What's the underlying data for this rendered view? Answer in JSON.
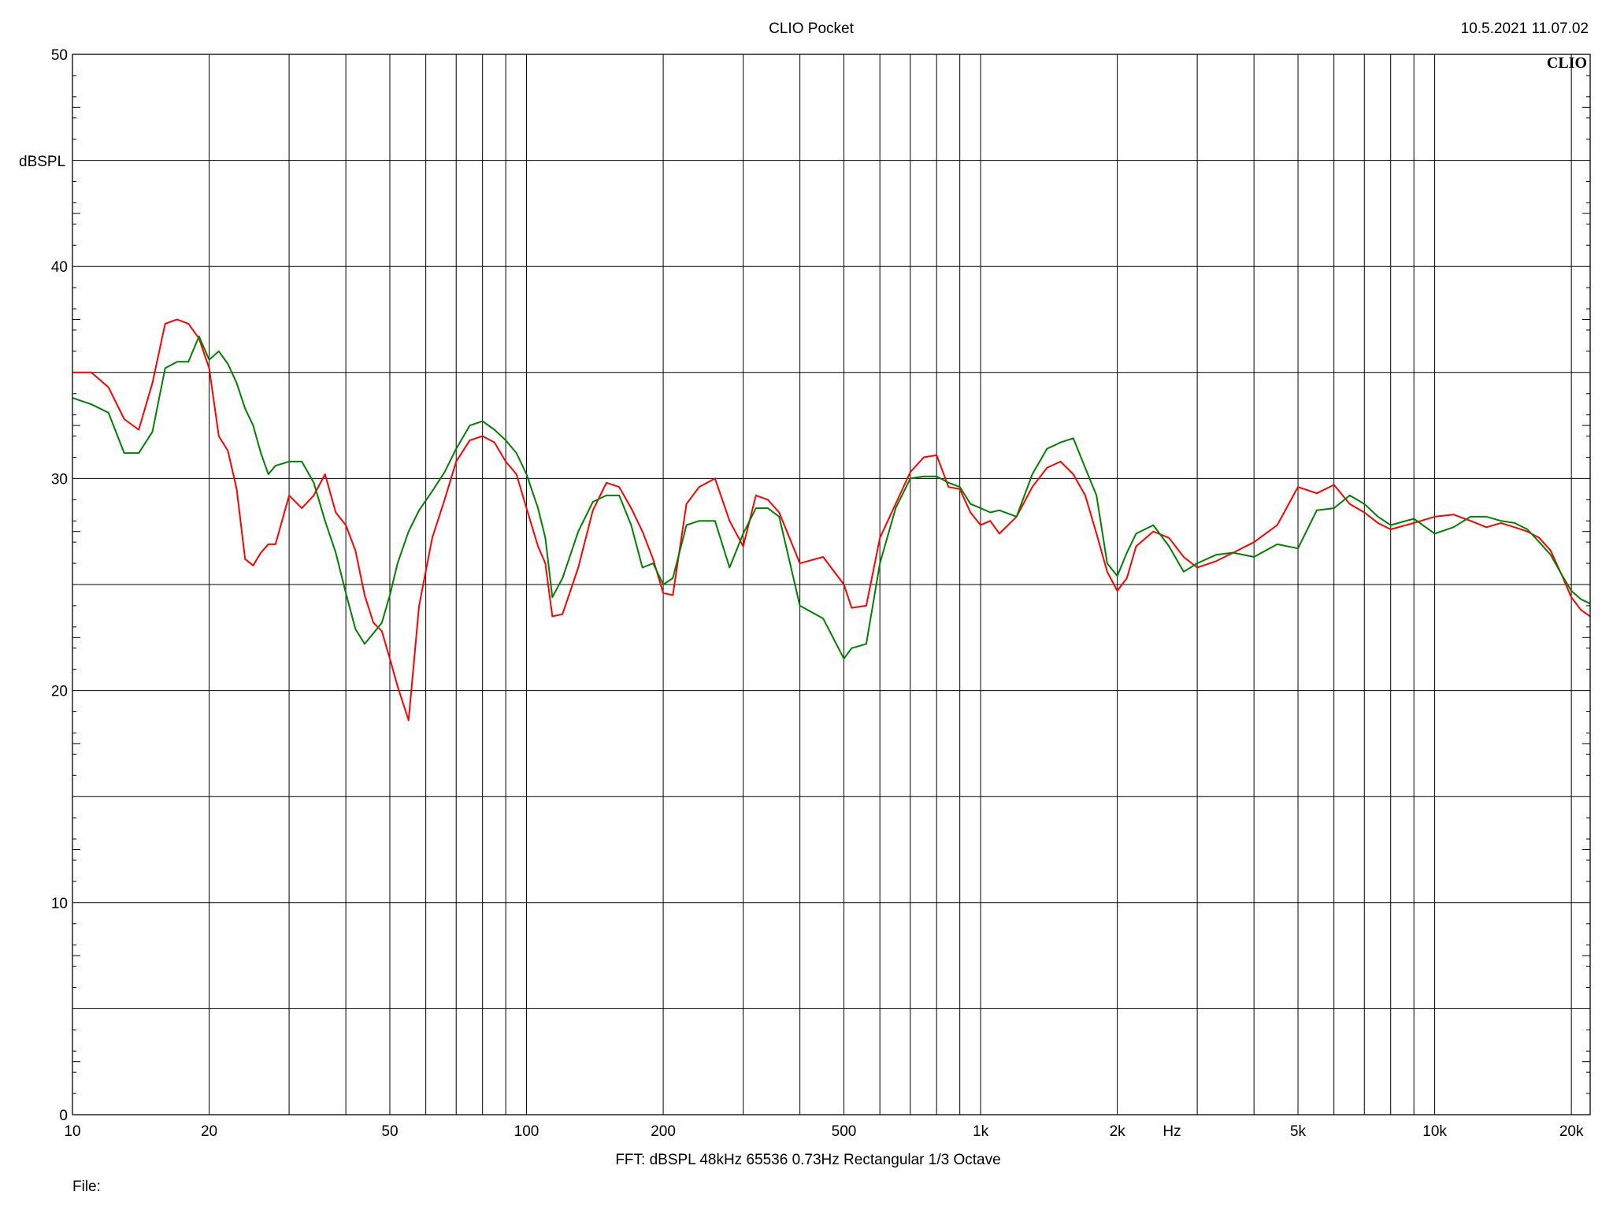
{
  "header": {
    "title": "CLIO Pocket",
    "timestamp": "10.5.2021 11.07.02",
    "brand": "CLIO"
  },
  "footer": {
    "settings": "FFT:  dBSPL  48kHz   65536  0.73Hz  Rectangular  1/3 Octave",
    "file_label": "File:"
  },
  "chart_data": {
    "type": "line",
    "xscale": "log",
    "xlim": [
      10,
      22000
    ],
    "ylim": [
      0,
      50
    ],
    "ylabel": "dBSPL",
    "xunit_label": "Hz",
    "grid": true,
    "y_ticks": [
      0,
      10,
      20,
      30,
      40,
      50
    ],
    "y_tick_labels": [
      "0",
      "10",
      "20",
      "30",
      "40",
      "50"
    ],
    "x_ticks": [
      10,
      20,
      50,
      100,
      200,
      500,
      1000,
      2000,
      5000,
      10000,
      20000
    ],
    "x_tick_labels": [
      "10",
      "20",
      "50",
      "100",
      "200",
      "500",
      "1k",
      "2k",
      "5k",
      "10k",
      "20k"
    ],
    "series": [
      {
        "color": "#ff0000",
        "x": [
          10,
          11,
          12,
          13,
          14,
          15,
          16,
          17,
          18,
          19,
          20,
          21,
          22,
          23,
          24,
          25,
          26,
          27,
          28,
          30,
          32,
          34,
          36,
          38,
          40,
          42,
          44,
          46,
          48,
          50,
          52,
          55,
          58,
          62,
          66,
          70,
          75,
          80,
          85,
          90,
          95,
          100,
          106,
          110,
          114,
          120,
          130,
          140,
          150,
          160,
          170,
          180,
          190,
          200,
          210,
          225,
          240,
          260,
          280,
          300,
          320,
          340,
          360,
          400,
          450,
          500,
          520,
          560,
          600,
          650,
          700,
          750,
          800,
          850,
          900,
          950,
          1000,
          1050,
          1100,
          1200,
          1300,
          1400,
          1500,
          1600,
          1700,
          1800,
          1900,
          2000,
          2100,
          2200,
          2400,
          2600,
          2800,
          3000,
          3300,
          3600,
          4000,
          4500,
          5000,
          5500,
          6000,
          6500,
          7000,
          7500,
          8000,
          9000,
          10000,
          11000,
          12000,
          13000,
          14000,
          15000,
          16000,
          17000,
          18000,
          19000,
          20000,
          21000,
          22000
        ],
        "y": [
          35.0,
          35.0,
          34.3,
          32.8,
          32.3,
          34.5,
          37.3,
          37.5,
          37.3,
          36.6,
          35.2,
          32.0,
          31.3,
          29.5,
          26.2,
          25.9,
          26.5,
          26.9,
          26.9,
          29.2,
          28.6,
          29.2,
          30.2,
          28.4,
          27.8,
          26.6,
          24.5,
          23.2,
          22.8,
          21.5,
          20.2,
          18.6,
          24.0,
          27.2,
          29.0,
          30.8,
          31.8,
          32.0,
          31.7,
          30.8,
          30.2,
          28.6,
          26.8,
          26.0,
          23.5,
          23.6,
          25.8,
          28.5,
          29.8,
          29.6,
          28.6,
          27.5,
          26.2,
          24.6,
          24.5,
          28.8,
          29.6,
          30.0,
          28.0,
          26.8,
          29.2,
          29.0,
          28.4,
          26.0,
          26.3,
          25.0,
          23.9,
          24.0,
          27.2,
          28.8,
          30.3,
          31.0,
          31.1,
          29.6,
          29.5,
          28.4,
          27.8,
          28.0,
          27.4,
          28.2,
          29.6,
          30.5,
          30.8,
          30.2,
          29.2,
          27.4,
          25.6,
          24.7,
          25.3,
          26.8,
          27.5,
          27.2,
          26.3,
          25.8,
          26.1,
          26.5,
          27.0,
          27.8,
          29.6,
          29.3,
          29.7,
          28.8,
          28.4,
          27.9,
          27.6,
          27.9,
          28.2,
          28.3,
          28.0,
          27.7,
          27.9,
          27.7,
          27.5,
          27.2,
          26.6,
          25.5,
          24.4,
          23.8,
          23.5
        ]
      },
      {
        "color": "#008000",
        "x": [
          10,
          11,
          12,
          13,
          14,
          15,
          16,
          17,
          18,
          19,
          20,
          21,
          22,
          23,
          24,
          25,
          26,
          27,
          28,
          30,
          32,
          34,
          36,
          38,
          40,
          42,
          44,
          46,
          48,
          50,
          52,
          55,
          58,
          62,
          66,
          70,
          75,
          80,
          85,
          90,
          95,
          100,
          106,
          110,
          114,
          120,
          130,
          140,
          150,
          160,
          170,
          180,
          190,
          200,
          210,
          225,
          240,
          260,
          280,
          300,
          320,
          340,
          360,
          400,
          450,
          500,
          520,
          560,
          600,
          650,
          700,
          750,
          800,
          850,
          900,
          950,
          1000,
          1050,
          1100,
          1200,
          1300,
          1400,
          1500,
          1600,
          1700,
          1800,
          1900,
          2000,
          2100,
          2200,
          2400,
          2600,
          2800,
          3000,
          3300,
          3600,
          4000,
          4500,
          5000,
          5500,
          6000,
          6500,
          7000,
          7500,
          8000,
          9000,
          10000,
          11000,
          12000,
          13000,
          14000,
          15000,
          16000,
          17000,
          18000,
          19000,
          20000,
          21000,
          22000
        ],
        "y": [
          33.8,
          33.5,
          33.1,
          31.2,
          31.2,
          32.2,
          35.2,
          35.5,
          35.5,
          36.7,
          35.6,
          36.0,
          35.4,
          34.5,
          33.3,
          32.5,
          31.2,
          30.2,
          30.6,
          30.8,
          30.8,
          29.8,
          28.0,
          26.5,
          24.6,
          22.9,
          22.2,
          22.7,
          23.2,
          24.5,
          26.0,
          27.5,
          28.5,
          29.4,
          30.3,
          31.4,
          32.5,
          32.7,
          32.3,
          31.8,
          31.2,
          30.2,
          28.6,
          27.2,
          24.4,
          25.3,
          27.5,
          28.9,
          29.2,
          29.2,
          27.8,
          25.8,
          26.0,
          25.0,
          25.3,
          27.8,
          28.0,
          28.0,
          25.8,
          27.4,
          28.6,
          28.6,
          28.2,
          24.0,
          23.4,
          21.5,
          22.0,
          22.2,
          26.0,
          28.6,
          30.0,
          30.1,
          30.1,
          29.8,
          29.6,
          28.8,
          28.6,
          28.4,
          28.5,
          28.2,
          30.2,
          31.4,
          31.7,
          31.9,
          30.5,
          29.2,
          26.0,
          25.4,
          26.5,
          27.4,
          27.8,
          26.8,
          25.6,
          26.0,
          26.4,
          26.5,
          26.3,
          26.9,
          26.7,
          28.5,
          28.6,
          29.2,
          28.8,
          28.2,
          27.8,
          28.1,
          27.4,
          27.7,
          28.2,
          28.2,
          28.0,
          27.9,
          27.6,
          27.0,
          26.4,
          25.5,
          24.7,
          24.3,
          24.1
        ]
      }
    ]
  }
}
